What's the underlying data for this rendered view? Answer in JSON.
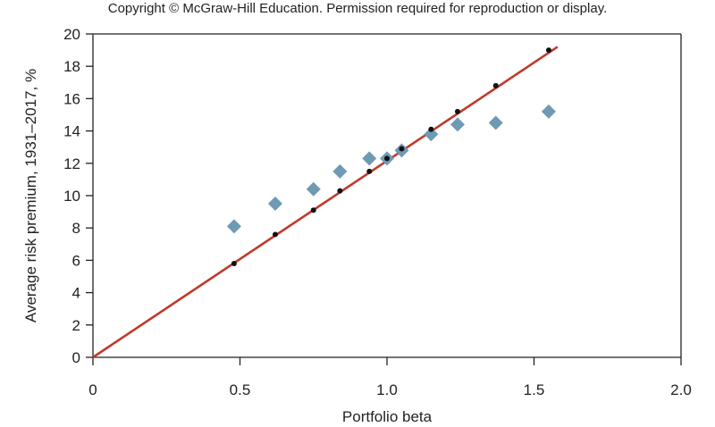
{
  "header": {
    "copyright": "Copyright © McGraw-Hill Education. Permission required for reproduction or display."
  },
  "colors": {
    "line": "#c0392b",
    "actual_points": "#6f9ab3",
    "predicted_points": "#111111",
    "axis": "#222222"
  },
  "chart_data": {
    "type": "scatter",
    "title": "",
    "xlabel": "Portfolio beta",
    "ylabel": "Average risk premium, 1931–2017, %",
    "xlim": [
      0,
      2.0
    ],
    "ylim": [
      0,
      20
    ],
    "x_ticks": [
      0,
      0.5,
      1.0,
      1.5,
      2.0
    ],
    "x_tick_labels": [
      "0",
      "0.5",
      "1.0",
      "1.5",
      "2.0"
    ],
    "y_ticks": [
      0,
      2,
      4,
      6,
      8,
      10,
      12,
      14,
      16,
      18,
      20
    ],
    "y_tick_labels": [
      "0",
      "2",
      "4",
      "6",
      "8",
      "10",
      "12",
      "14",
      "16",
      "18",
      "20"
    ],
    "series": [
      {
        "marker": "diamond",
        "points": [
          {
            "x": 0.48,
            "y": 8.1
          },
          {
            "x": 0.62,
            "y": 9.5
          },
          {
            "x": 0.75,
            "y": 10.4
          },
          {
            "x": 0.84,
            "y": 11.5
          },
          {
            "x": 0.94,
            "y": 12.3
          },
          {
            "x": 1.0,
            "y": 12.3
          },
          {
            "x": 1.05,
            "y": 12.8
          },
          {
            "x": 1.15,
            "y": 13.8
          },
          {
            "x": 1.24,
            "y": 14.4
          },
          {
            "x": 1.37,
            "y": 14.5
          },
          {
            "x": 1.55,
            "y": 15.2
          }
        ]
      },
      {
        "marker": "dot",
        "points": [
          {
            "x": 0.48,
            "y": 5.8
          },
          {
            "x": 0.62,
            "y": 7.6
          },
          {
            "x": 0.75,
            "y": 9.1
          },
          {
            "x": 0.84,
            "y": 10.3
          },
          {
            "x": 0.94,
            "y": 11.5
          },
          {
            "x": 1.0,
            "y": 12.3
          },
          {
            "x": 1.05,
            "y": 12.9
          },
          {
            "x": 1.15,
            "y": 14.1
          },
          {
            "x": 1.24,
            "y": 15.2
          },
          {
            "x": 1.37,
            "y": 16.8
          },
          {
            "x": 1.55,
            "y": 19.0
          }
        ]
      }
    ],
    "line": {
      "from": {
        "x": 0,
        "y": 0
      },
      "to": {
        "x": 1.58,
        "y": 19.2
      }
    }
  }
}
